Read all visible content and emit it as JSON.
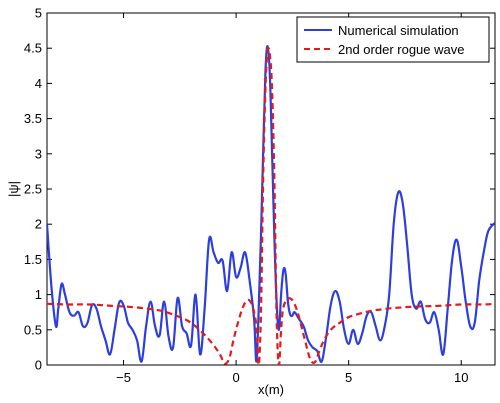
{
  "chart_data": {
    "type": "line",
    "title": "",
    "xlabel": "x(m)",
    "ylabel": "|ψ|",
    "xlim": [
      -8.4,
      11.5
    ],
    "ylim": [
      0,
      5
    ],
    "xticks": [
      -5,
      0,
      5,
      10
    ],
    "xtick_labels": [
      "−5",
      "0",
      "5",
      "10"
    ],
    "yticks": [
      0,
      0.5,
      1,
      1.5,
      2,
      2.5,
      3,
      3.5,
      4,
      4.5,
      5
    ],
    "ytick_labels": [
      "0",
      "0.5",
      "1",
      "1.5",
      "2",
      "2.5",
      "3",
      "3.5",
      "4",
      "4.5",
      "5"
    ],
    "grid": false,
    "legend_position": "top-right",
    "series": [
      {
        "name": "Numerical simulation",
        "color": "#2c3ee0",
        "style": "solid",
        "x": [
          -8.4,
          -8.2,
          -8.0,
          -7.9,
          -7.75,
          -7.6,
          -7.4,
          -7.2,
          -7.0,
          -6.8,
          -6.6,
          -6.4,
          -6.2,
          -6.0,
          -5.8,
          -5.6,
          -5.4,
          -5.2,
          -5.0,
          -4.8,
          -4.6,
          -4.4,
          -4.2,
          -4.0,
          -3.8,
          -3.6,
          -3.4,
          -3.2,
          -3.0,
          -2.8,
          -2.6,
          -2.4,
          -2.2,
          -2.0,
          -1.8,
          -1.6,
          -1.4,
          -1.2,
          -1.0,
          -0.8,
          -0.6,
          -0.4,
          -0.2,
          0.0,
          0.2,
          0.4,
          0.6,
          0.8,
          0.9,
          1.0,
          1.1,
          1.2,
          1.3,
          1.4,
          1.5,
          1.6,
          1.7,
          1.8,
          1.9,
          2.0,
          2.1,
          2.2,
          2.3,
          2.4,
          2.5,
          2.6,
          2.8,
          3.0,
          3.2,
          3.4,
          3.6,
          3.8,
          4.0,
          4.2,
          4.4,
          4.6,
          4.8,
          5.0,
          5.2,
          5.4,
          5.6,
          5.8,
          6.0,
          6.2,
          6.4,
          6.6,
          6.8,
          7.0,
          7.2,
          7.4,
          7.6,
          7.8,
          8.0,
          8.2,
          8.4,
          8.6,
          8.8,
          9.0,
          9.2,
          9.4,
          9.6,
          9.8,
          10.0,
          10.2,
          10.4,
          10.6,
          10.8,
          11.0,
          11.2,
          11.5
        ],
        "y": [
          2.0,
          1.1,
          0.55,
          0.8,
          1.15,
          1.0,
          0.75,
          0.7,
          0.75,
          0.55,
          0.6,
          0.85,
          0.8,
          0.55,
          0.35,
          0.15,
          0.5,
          0.88,
          0.85,
          0.6,
          0.5,
          0.35,
          0.05,
          0.55,
          0.9,
          0.55,
          0.42,
          0.9,
          0.4,
          0.25,
          0.95,
          0.55,
          0.45,
          0.28,
          1.0,
          0.15,
          0.8,
          1.78,
          1.6,
          1.45,
          1.48,
          1.05,
          1.6,
          1.25,
          1.38,
          1.6,
          1.2,
          0.65,
          0.05,
          0.75,
          1.8,
          3.0,
          4.15,
          4.53,
          4.1,
          3.0,
          1.8,
          0.9,
          0.5,
          1.0,
          1.35,
          1.3,
          0.9,
          0.72,
          0.7,
          0.75,
          0.65,
          0.55,
          0.35,
          0.25,
          0.2,
          0.05,
          0.4,
          0.85,
          1.05,
          0.9,
          0.5,
          0.3,
          0.5,
          0.3,
          0.45,
          0.7,
          0.75,
          0.55,
          0.35,
          0.55,
          1.0,
          2.0,
          2.45,
          2.3,
          1.7,
          1.0,
          0.8,
          0.9,
          0.65,
          0.6,
          0.75,
          0.5,
          0.15,
          0.8,
          1.5,
          1.78,
          1.4,
          0.9,
          0.55,
          0.6,
          1.2,
          1.6,
          1.9,
          2.02
        ]
      },
      {
        "name": "2nd order rogue wave",
        "color": "#e21b1b",
        "style": "dashed",
        "x": [
          -8.4,
          -7.5,
          -6.5,
          -5.5,
          -4.5,
          -3.5,
          -3.0,
          -2.5,
          -2.0,
          -1.5,
          -1.2,
          -0.9,
          -0.7,
          -0.5,
          -0.3,
          -0.1,
          0.1,
          0.3,
          0.5,
          0.7,
          0.9,
          1.0,
          1.1,
          1.2,
          1.3,
          1.4,
          1.5,
          1.6,
          1.7,
          1.8,
          1.9,
          2.0,
          2.1,
          2.3,
          2.5,
          2.7,
          2.9,
          3.1,
          3.3,
          3.5,
          3.7,
          3.9,
          4.2,
          4.6,
          5.0,
          5.5,
          6.0,
          6.5,
          7.0,
          8.0,
          9.0,
          10.0,
          11.0,
          11.5
        ],
        "y": [
          0.87,
          0.86,
          0.86,
          0.84,
          0.82,
          0.78,
          0.74,
          0.68,
          0.6,
          0.46,
          0.36,
          0.24,
          0.14,
          0.02,
          0.1,
          0.38,
          0.62,
          0.82,
          0.92,
          0.86,
          0.55,
          0.0,
          0.7,
          2.6,
          3.9,
          4.45,
          4.4,
          3.9,
          2.6,
          0.7,
          0.0,
          0.5,
          0.82,
          0.94,
          0.92,
          0.78,
          0.55,
          0.3,
          0.08,
          0.04,
          0.2,
          0.35,
          0.5,
          0.6,
          0.68,
          0.73,
          0.77,
          0.79,
          0.81,
          0.83,
          0.84,
          0.86,
          0.86,
          0.87
        ]
      }
    ]
  }
}
